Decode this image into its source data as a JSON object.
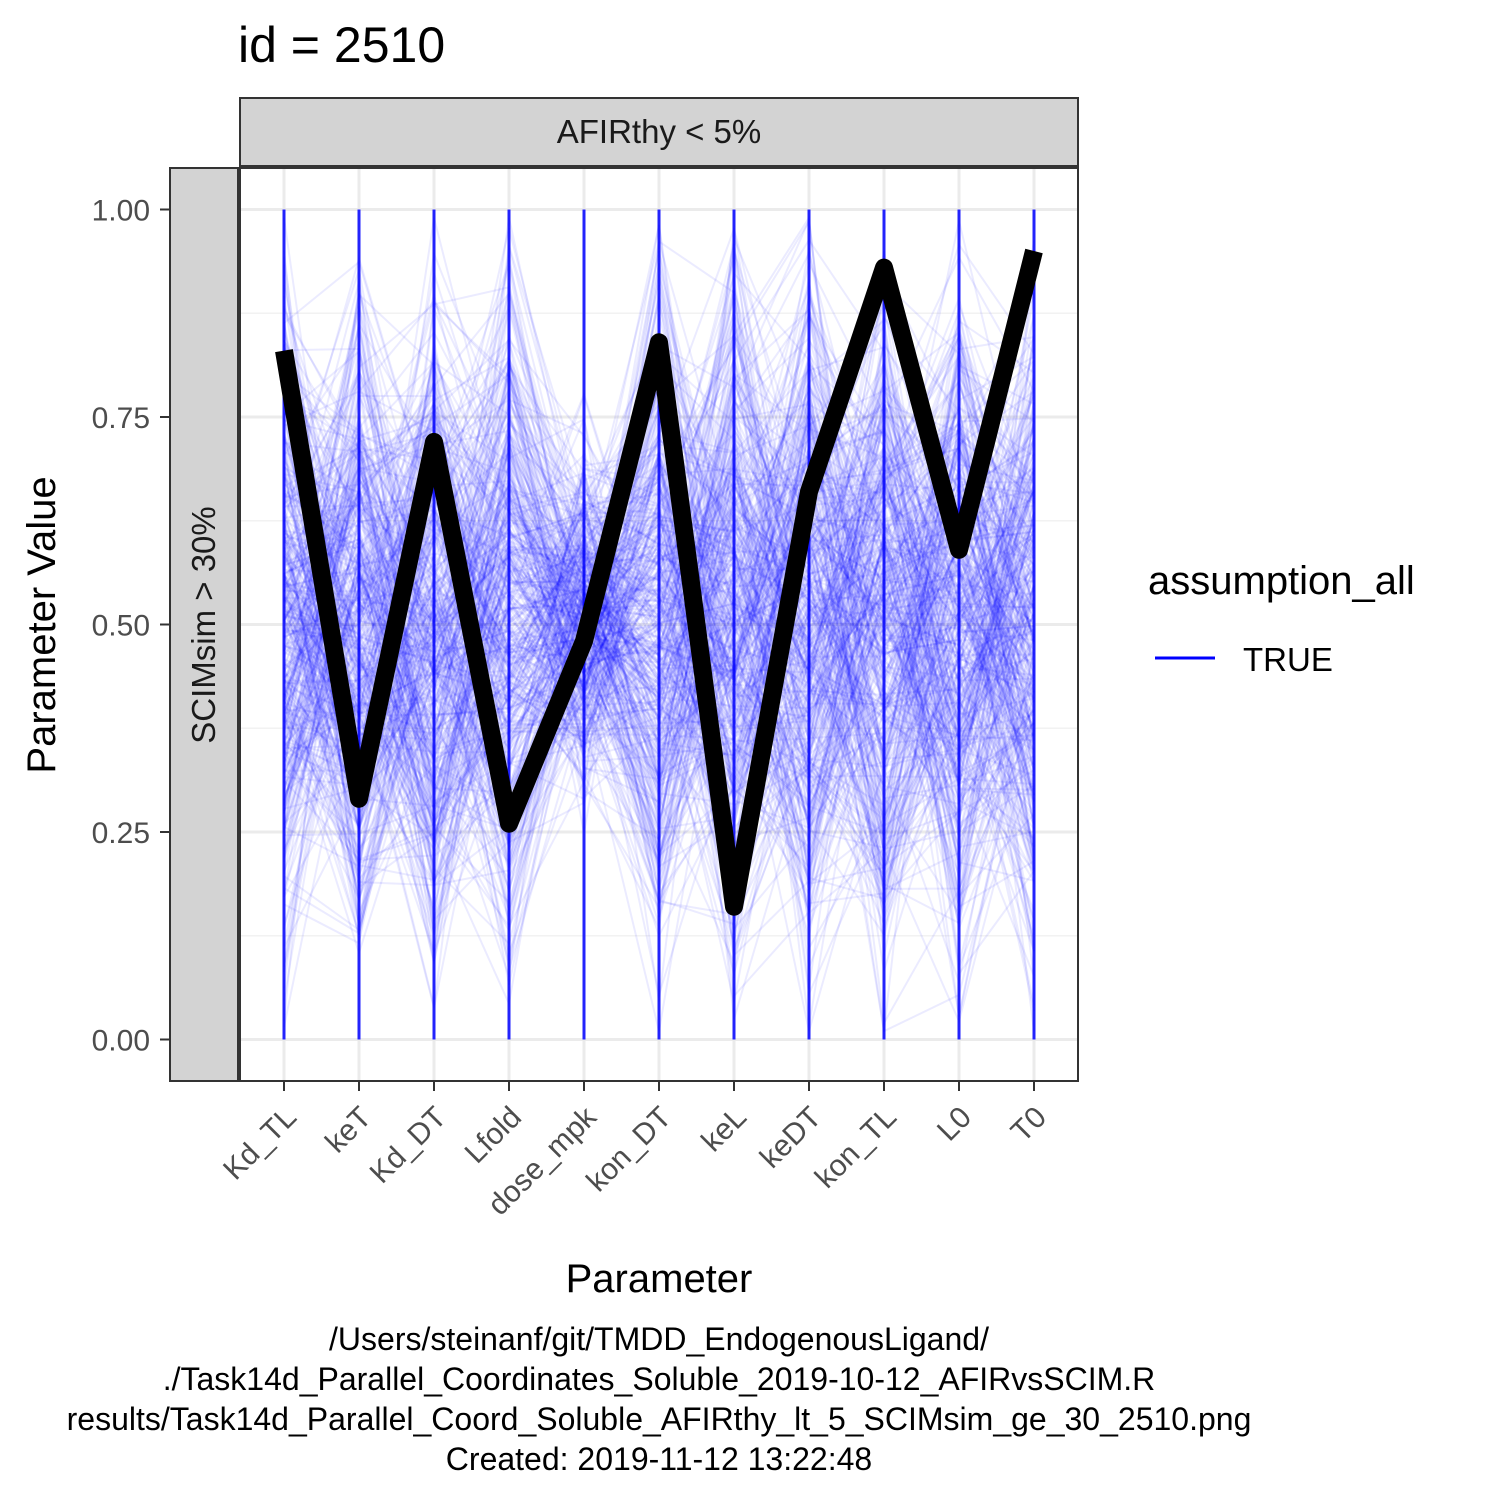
{
  "chart_data": {
    "type": "line",
    "title": "id = 2510",
    "xlabel": "Parameter",
    "ylabel": "Parameter Value",
    "facet_col_label": "AFIRthy < 5%",
    "facet_row_label": "SCIMsim > 30%",
    "categories": [
      "Kd_TL",
      "keT",
      "Kd_DT",
      "Lfold",
      "dose_mpk",
      "kon_DT",
      "keL",
      "keDT",
      "kon_TL",
      "L0",
      "T0"
    ],
    "y_ticks": [
      "0.00",
      "0.25",
      "0.50",
      "0.75",
      "1.00"
    ],
    "ylim": [
      -0.05,
      1.05
    ],
    "grid": true,
    "series": [
      {
        "name": "TRUE",
        "color": "#0000ff",
        "role": "background parallel coordinate lines (many, semi-transparent)"
      },
      {
        "highlight": true,
        "color": "#000000",
        "values": [
          0.83,
          0.29,
          0.72,
          0.26,
          0.48,
          0.84,
          0.16,
          0.66,
          0.93,
          0.59,
          0.95
        ]
      }
    ],
    "legend": {
      "title": "assumption_all",
      "position": "right",
      "items": [
        {
          "label": "TRUE",
          "color": "#0000ff"
        }
      ]
    }
  },
  "caption": {
    "lines": [
      "/Users/steinanf/git/TMDD_EndogenousLigand/",
      "./Task14d_Parallel_Coordinates_Soluble_2019-10-12_AFIRvsSCIM.R",
      "results/Task14d_Parallel_Coord_Soluble_AFIRthy_lt_5_SCIMsim_ge_30_2510.png",
      "Created: 2019-11-12 13:22:48"
    ]
  },
  "colors": {
    "panel_border": "#333333",
    "strip_fill": "#d9d9d9",
    "grid_major": "#ebebeb",
    "grid_minor": "#f2f2f2",
    "background_lines": "#0000ff",
    "highlight_line": "#000000"
  }
}
